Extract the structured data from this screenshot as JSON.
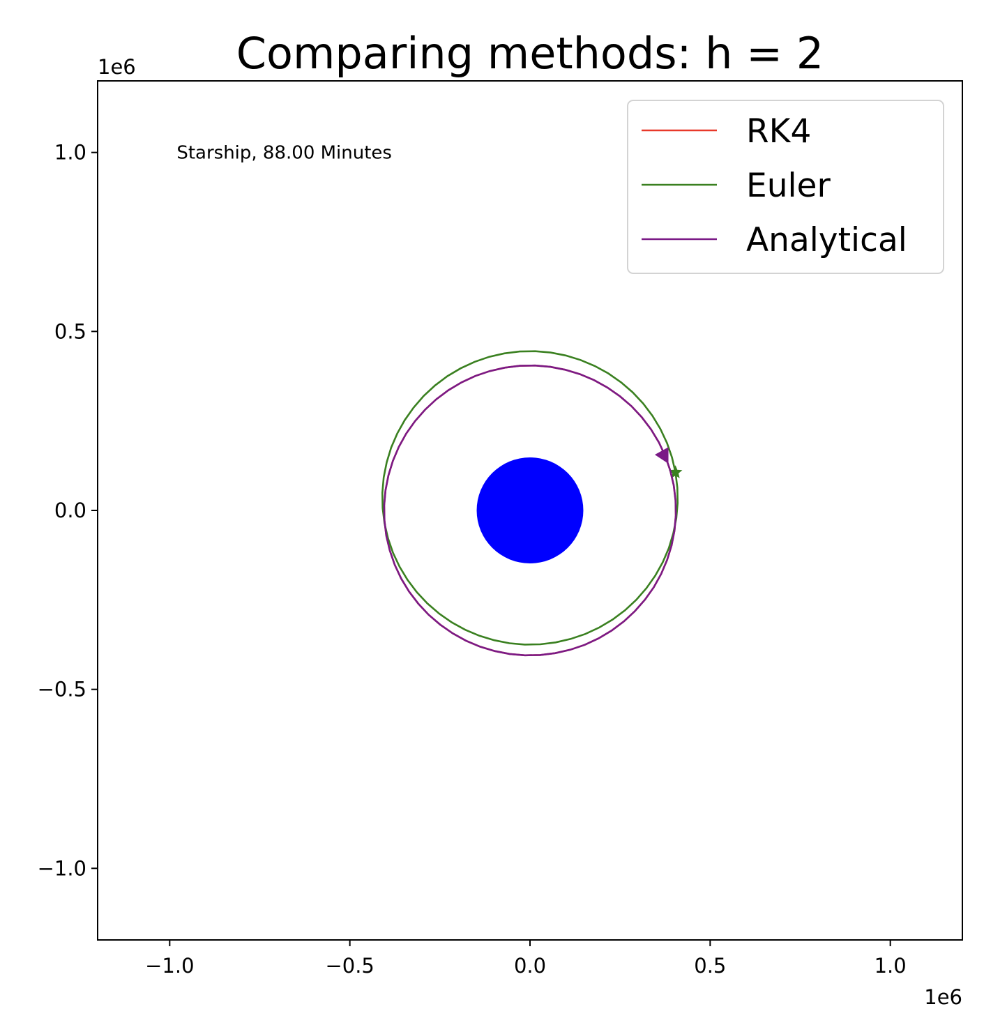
{
  "chart_data": {
    "type": "line",
    "title": "Comparing methods: h = 2",
    "xlabel": "",
    "ylabel": "",
    "x_offset_label": "1e6",
    "y_offset_label": "1e6",
    "xlim": [
      -1.2,
      1.2
    ],
    "ylim": [
      -1.2,
      1.2
    ],
    "x_ticks": [
      -1.0,
      -0.5,
      0.0,
      0.5,
      1.0
    ],
    "y_ticks": [
      -1.0,
      -0.5,
      0.0,
      0.5,
      1.0
    ],
    "x_tick_labels": [
      "−1.0",
      "−0.5",
      "0.0",
      "0.5",
      "1.0"
    ],
    "y_tick_labels": [
      "−1.0",
      "−0.5",
      "0.0",
      "0.5",
      "1.0"
    ],
    "grid": false,
    "legend_position": "top-right",
    "annotation": {
      "text": "Starship, 88.00 Minutes",
      "x": -1.0,
      "y": 1.0
    },
    "planet": {
      "center": [
        0.0,
        0.0
      ],
      "radius": 0.148,
      "color": "#0000ff"
    },
    "series": [
      {
        "name": "RK4",
        "color": "#e8392a",
        "center": [
          0.0,
          0.0
        ],
        "radius": 0.405,
        "start_angle_deg": 22,
        "marker": "none"
      },
      {
        "name": "Euler",
        "color": "#3a8020",
        "center": [
          0.0,
          0.035
        ],
        "radius": 0.41,
        "start_angle_deg": 10,
        "marker": "star"
      },
      {
        "name": "Analytical",
        "color": "#7a1a86",
        "center": [
          0.0,
          0.0
        ],
        "radius": 0.405,
        "start_angle_deg": 22,
        "marker": "triangle-left"
      }
    ]
  }
}
